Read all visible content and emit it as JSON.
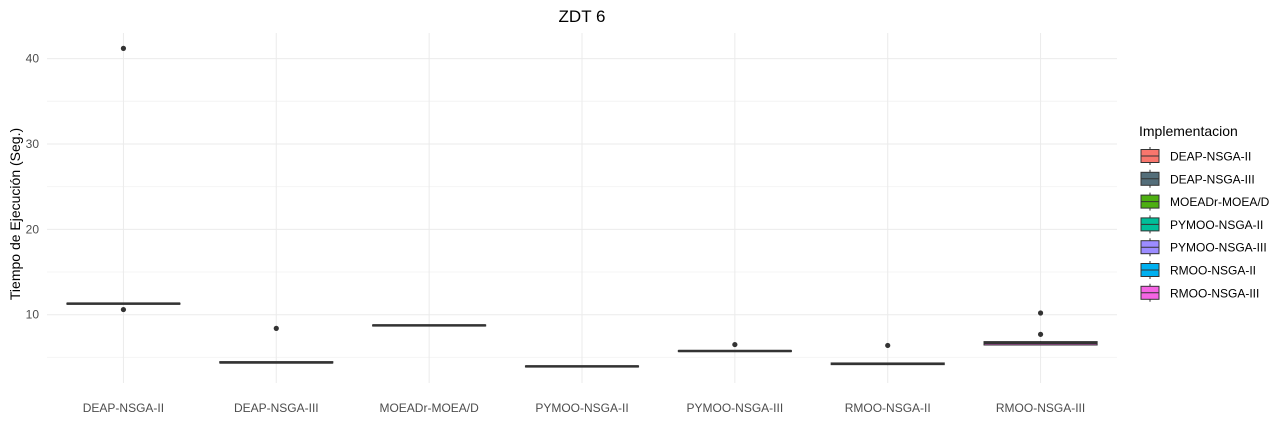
{
  "chart_data": {
    "type": "box",
    "title": "ZDT 6",
    "xlabel": "",
    "ylabel": "Tiempo de Ejecución (Seg.)",
    "ylim": [
      2.0,
      43.0
    ],
    "y_ticks": [
      10,
      20,
      30,
      40
    ],
    "grid": true,
    "legend": {
      "title": "Implementacion",
      "position": "right"
    },
    "categories": [
      "DEAP-NSGA-II",
      "DEAP-NSGA-III",
      "MOEADr-MOEA/D",
      "PYMOO-NSGA-II",
      "PYMOO-NSGA-III",
      "RMOO-NSGA-II",
      "RMOO-NSGA-III"
    ],
    "series": [
      {
        "name": "DEAP-NSGA-II",
        "color": "#F8766D",
        "min": 11.2,
        "q1": 11.25,
        "median": 11.3,
        "q3": 11.35,
        "max": 11.4,
        "outliers": [
          41.2,
          10.6
        ]
      },
      {
        "name": "DEAP-NSGA-III",
        "color": "#546E7A",
        "min": 4.3,
        "q1": 4.35,
        "median": 4.4,
        "q3": 4.5,
        "max": 4.5,
        "outliers": [
          8.4
        ]
      },
      {
        "name": "MOEADr-MOEA/D",
        "color": "#4DAF11",
        "min": 8.65,
        "q1": 8.7,
        "median": 8.75,
        "q3": 8.8,
        "max": 8.85,
        "outliers": []
      },
      {
        "name": "PYMOO-NSGA-II",
        "color": "#00BF9A",
        "min": 3.85,
        "q1": 3.9,
        "median": 3.95,
        "q3": 4.0,
        "max": 4.05,
        "outliers": []
      },
      {
        "name": "PYMOO-NSGA-III",
        "color": "#9C8CFF",
        "min": 5.65,
        "q1": 5.7,
        "median": 5.75,
        "q3": 5.8,
        "max": 5.85,
        "outliers": [
          6.5
        ]
      },
      {
        "name": "RMOO-NSGA-II",
        "color": "#00B0F0",
        "min": 4.1,
        "q1": 4.15,
        "median": 4.25,
        "q3": 4.35,
        "max": 4.4,
        "outliers": [
          6.4
        ]
      },
      {
        "name": "RMOO-NSGA-III",
        "color": "#F564E3",
        "min": 6.4,
        "q1": 6.45,
        "median": 6.7,
        "q3": 6.85,
        "max": 6.9,
        "outliers": [
          10.2,
          7.7
        ]
      }
    ]
  }
}
